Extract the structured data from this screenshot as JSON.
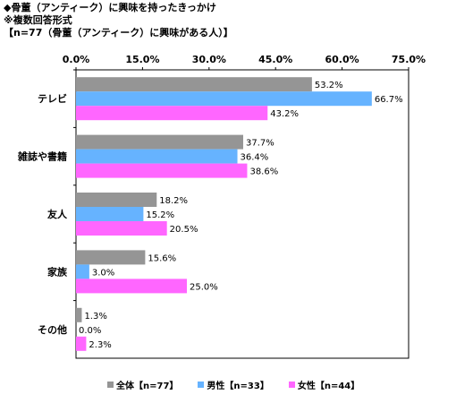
{
  "header": {
    "title": "◆骨董（アンティーク）に興味を持ったきっかけ",
    "note": "※複数回答形式",
    "base": "【n=77（骨董（アンティーク）に興味がある人）】"
  },
  "chart_data": {
    "type": "bar",
    "orientation": "horizontal",
    "categories": [
      "テレビ",
      "雑誌や書籍",
      "友人",
      "家族",
      "その他"
    ],
    "series": [
      {
        "name": "全体【n=77】",
        "color": "#959595",
        "values": [
          53.2,
          37.7,
          18.2,
          15.6,
          1.3
        ]
      },
      {
        "name": "男性【n=33】",
        "color": "#66b3ff",
        "values": [
          66.7,
          36.4,
          15.2,
          3.0,
          0.0
        ]
      },
      {
        "name": "女性【n=44】",
        "color": "#ff66ff",
        "values": [
          43.2,
          38.6,
          20.5,
          25.0,
          2.3
        ]
      }
    ],
    "xlim": [
      0,
      75
    ],
    "ticks": [
      0,
      15,
      30,
      45,
      60,
      75
    ],
    "tick_labels": [
      "0.0%",
      "15.0%",
      "30.0%",
      "45.0%",
      "60.0%",
      "75.0%"
    ],
    "value_labels": [
      [
        "53.2%",
        "37.7%",
        "18.2%",
        "15.6%",
        "1.3%"
      ],
      [
        "66.7%",
        "36.4%",
        "15.2%",
        "3.0%",
        "0.0%"
      ],
      [
        "43.2%",
        "38.6%",
        "20.5%",
        "25.0%",
        "2.3%"
      ]
    ],
    "legend_position": "bottom",
    "grid": false
  }
}
